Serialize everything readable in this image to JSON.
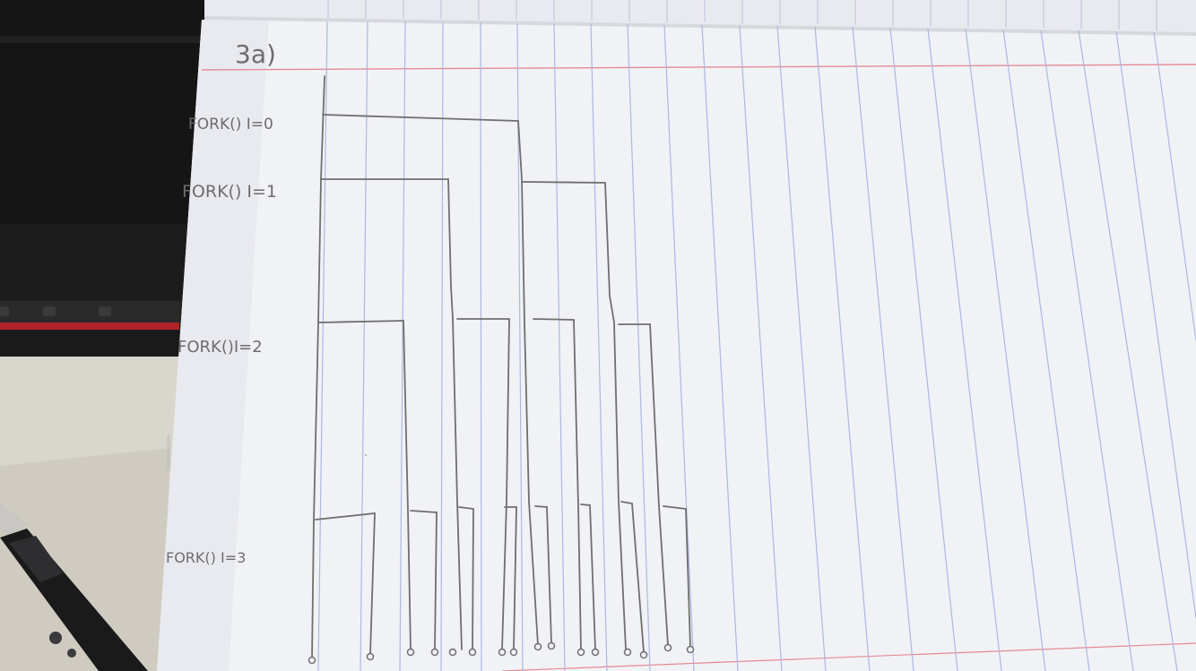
{
  "photo": {
    "subject": "Handwritten process fork tree on lined notebook paper",
    "heading": "3a)",
    "row_labels": [
      "FORK() I=0",
      "FORK() I=1",
      "FORK()I=2",
      "FORK() I=3"
    ],
    "leaf_count": 16,
    "colors": {
      "paper": "#f1f2f6",
      "rule_lines": "#aeb6e0",
      "margin_line": "#e58a95",
      "pencil": "#6f6f6f",
      "desk_dark": "#1c1b1b",
      "desk_light": "#dcdad2"
    }
  }
}
